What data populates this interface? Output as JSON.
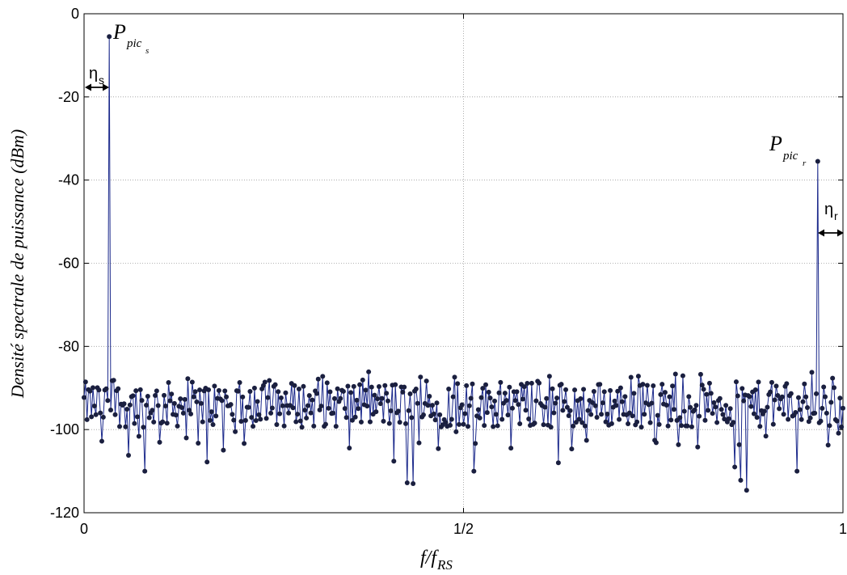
{
  "chart_data": {
    "type": "line",
    "title": "",
    "xlabel": {
      "main": "f/f",
      "sub": "RS"
    },
    "ylabel": "Densité spectrale de puissance (dBm)",
    "xlim": [
      0,
      1
    ],
    "ylim": [
      -120,
      0
    ],
    "xticks": [
      {
        "value": 0,
        "label": "0"
      },
      {
        "value": 0.5,
        "label": "1/2"
      },
      {
        "value": 1,
        "label": "1"
      }
    ],
    "yticks": [
      {
        "value": 0,
        "label": "0"
      },
      {
        "value": -20,
        "label": "-20"
      },
      {
        "value": -40,
        "label": "-40"
      },
      {
        "value": -60,
        "label": "-60"
      },
      {
        "value": -80,
        "label": "-80"
      },
      {
        "value": -100,
        "label": "-100"
      },
      {
        "value": -120,
        "label": "-120"
      }
    ],
    "grid": true,
    "line_color": "#1c2a8c",
    "marker_color": "#1a1f3f",
    "n_points": 513,
    "noise_floor_dBm": -94,
    "peaks": [
      {
        "x": 0.0335,
        "y": -5.5
      },
      {
        "x": 0.9665,
        "y": -35.5
      }
    ],
    "notable_dips": [
      {
        "x": 0.0234,
        "y": -102.8
      },
      {
        "x": 0.0587,
        "y": -106.2
      },
      {
        "x": 0.0793,
        "y": -110.0
      },
      {
        "x": 0.1614,
        "y": -107.8
      },
      {
        "x": 0.4078,
        "y": -107.6
      },
      {
        "x": 0.4258,
        "y": -112.8
      },
      {
        "x": 0.4332,
        "y": -113.0
      },
      {
        "x": 0.4411,
        "y": -103.2
      },
      {
        "x": 0.5129,
        "y": -110.0
      },
      {
        "x": 0.6248,
        "y": -108.0
      },
      {
        "x": 0.8578,
        "y": -109.0
      },
      {
        "x": 0.8655,
        "y": -112.2
      },
      {
        "x": 0.8724,
        "y": -114.6
      },
      {
        "x": 0.9398,
        "y": -110.0
      }
    ],
    "annotations": [
      {
        "id": "peak_s",
        "main": "P",
        "sub": "pic",
        "subsub": "s"
      },
      {
        "id": "peak_r",
        "main": "P",
        "sub": "pic",
        "subsub": "r"
      },
      {
        "id": "eta_s",
        "main": "η",
        "sub": "s"
      },
      {
        "id": "eta_r",
        "main": "η",
        "sub": "r"
      }
    ]
  }
}
